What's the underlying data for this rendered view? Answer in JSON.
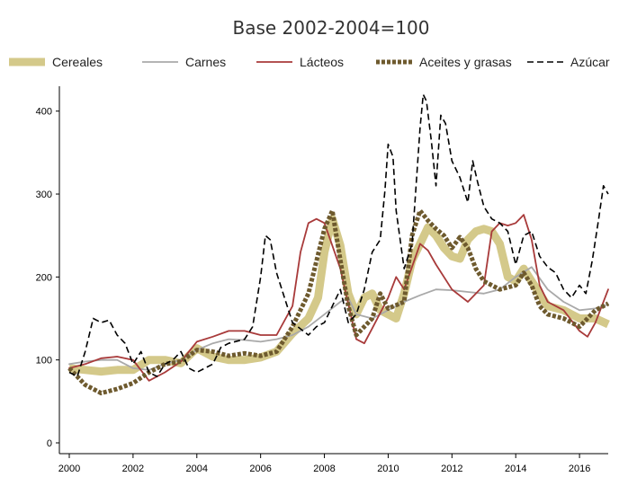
{
  "chart_data": {
    "type": "line",
    "title": "Base 2002-2004=100",
    "xlabel": "",
    "ylabel": "",
    "xlim": [
      2000,
      2016.9
    ],
    "ylim": [
      0,
      430
    ],
    "x_ticks": [
      {
        "value": 2000,
        "label": "2000"
      },
      {
        "value": 2002,
        "label": "2002"
      },
      {
        "value": 2004,
        "label": "2004"
      },
      {
        "value": 2006,
        "label": "2006"
      },
      {
        "value": 2008,
        "label": "2008"
      },
      {
        "value": 2010,
        "label": "2010"
      },
      {
        "value": 2012,
        "label": "2012"
      },
      {
        "value": 2014,
        "label": "2014"
      },
      {
        "value": 2016,
        "label": "2016"
      }
    ],
    "y_ticks": [
      {
        "value": 0,
        "label": "0"
      },
      {
        "value": 100,
        "label": "100"
      },
      {
        "value": 200,
        "label": "200"
      },
      {
        "value": 300,
        "label": "300"
      },
      {
        "value": 400,
        "label": "400"
      }
    ],
    "legend_position": "top",
    "grid": false,
    "series": [
      {
        "name": "Cereales",
        "color": "#d4c98a",
        "style": "thick",
        "points": [
          [
            2000.0,
            90
          ],
          [
            2000.5,
            88
          ],
          [
            2001.0,
            86
          ],
          [
            2001.5,
            88
          ],
          [
            2002.0,
            88
          ],
          [
            2002.5,
            100
          ],
          [
            2003.0,
            100
          ],
          [
            2003.5,
            96
          ],
          [
            2004.0,
            114
          ],
          [
            2004.5,
            104
          ],
          [
            2005.0,
            100
          ],
          [
            2005.5,
            100
          ],
          [
            2006.0,
            103
          ],
          [
            2006.5,
            110
          ],
          [
            2007.0,
            132
          ],
          [
            2007.5,
            150
          ],
          [
            2007.8,
            175
          ],
          [
            2008.0,
            230
          ],
          [
            2008.25,
            270
          ],
          [
            2008.5,
            238
          ],
          [
            2008.75,
            180
          ],
          [
            2009.0,
            155
          ],
          [
            2009.25,
            175
          ],
          [
            2009.5,
            180
          ],
          [
            2009.75,
            160
          ],
          [
            2010.0,
            155
          ],
          [
            2010.25,
            150
          ],
          [
            2010.5,
            180
          ],
          [
            2010.75,
            220
          ],
          [
            2011.0,
            240
          ],
          [
            2011.25,
            260
          ],
          [
            2011.5,
            250
          ],
          [
            2011.75,
            235
          ],
          [
            2012.0,
            225
          ],
          [
            2012.25,
            222
          ],
          [
            2012.5,
            245
          ],
          [
            2012.75,
            255
          ],
          [
            2013.0,
            258
          ],
          [
            2013.25,
            255
          ],
          [
            2013.5,
            240
          ],
          [
            2013.75,
            200
          ],
          [
            2014.0,
            195
          ],
          [
            2014.25,
            210
          ],
          [
            2014.5,
            195
          ],
          [
            2014.75,
            180
          ],
          [
            2015.0,
            165
          ],
          [
            2015.5,
            160
          ],
          [
            2016.0,
            150
          ],
          [
            2016.5,
            150
          ],
          [
            2016.9,
            143
          ]
        ]
      },
      {
        "name": "Carnes",
        "color": "#a9a9a9",
        "style": "solid",
        "points": [
          [
            2000.0,
            95
          ],
          [
            2000.5,
            98
          ],
          [
            2001.0,
            100
          ],
          [
            2001.5,
            100
          ],
          [
            2002.0,
            90
          ],
          [
            2002.5,
            88
          ],
          [
            2003.0,
            95
          ],
          [
            2003.5,
            100
          ],
          [
            2004.0,
            112
          ],
          [
            2004.5,
            120
          ],
          [
            2005.0,
            125
          ],
          [
            2005.5,
            124
          ],
          [
            2006.0,
            122
          ],
          [
            2006.5,
            125
          ],
          [
            2007.0,
            130
          ],
          [
            2007.5,
            140
          ],
          [
            2008.0,
            155
          ],
          [
            2008.5,
            170
          ],
          [
            2008.75,
            175
          ],
          [
            2009.0,
            155
          ],
          [
            2009.5,
            150
          ],
          [
            2010.0,
            160
          ],
          [
            2010.5,
            170
          ],
          [
            2011.0,
            178
          ],
          [
            2011.5,
            185
          ],
          [
            2012.0,
            184
          ],
          [
            2012.5,
            182
          ],
          [
            2013.0,
            180
          ],
          [
            2013.5,
            185
          ],
          [
            2014.0,
            200
          ],
          [
            2014.5,
            212
          ],
          [
            2015.0,
            185
          ],
          [
            2015.5,
            170
          ],
          [
            2016.0,
            160
          ],
          [
            2016.5,
            162
          ],
          [
            2016.9,
            167
          ]
        ]
      },
      {
        "name": "Lácteos",
        "color": "#a83a3a",
        "style": "solid",
        "points": [
          [
            2000.0,
            90
          ],
          [
            2000.5,
            95
          ],
          [
            2001.0,
            102
          ],
          [
            2001.5,
            104
          ],
          [
            2002.0,
            100
          ],
          [
            2002.5,
            75
          ],
          [
            2003.0,
            85
          ],
          [
            2003.5,
            98
          ],
          [
            2004.0,
            122
          ],
          [
            2004.5,
            128
          ],
          [
            2005.0,
            135
          ],
          [
            2005.5,
            135
          ],
          [
            2006.0,
            130
          ],
          [
            2006.5,
            130
          ],
          [
            2007.0,
            165
          ],
          [
            2007.25,
            230
          ],
          [
            2007.5,
            265
          ],
          [
            2007.75,
            270
          ],
          [
            2008.0,
            265
          ],
          [
            2008.5,
            210
          ],
          [
            2009.0,
            125
          ],
          [
            2009.25,
            120
          ],
          [
            2009.5,
            138
          ],
          [
            2010.0,
            175
          ],
          [
            2010.25,
            200
          ],
          [
            2010.5,
            185
          ],
          [
            2011.0,
            240
          ],
          [
            2011.25,
            232
          ],
          [
            2011.5,
            215
          ],
          [
            2012.0,
            185
          ],
          [
            2012.5,
            170
          ],
          [
            2013.0,
            190
          ],
          [
            2013.25,
            255
          ],
          [
            2013.5,
            265
          ],
          [
            2013.75,
            262
          ],
          [
            2014.0,
            265
          ],
          [
            2014.25,
            275
          ],
          [
            2014.5,
            245
          ],
          [
            2014.75,
            190
          ],
          [
            2015.0,
            170
          ],
          [
            2015.5,
            160
          ],
          [
            2016.0,
            135
          ],
          [
            2016.25,
            128
          ],
          [
            2016.5,
            145
          ],
          [
            2016.9,
            185
          ]
        ]
      },
      {
        "name": "Aceites y grasas",
        "color": "#6e5a2e",
        "style": "dotted",
        "points": [
          [
            2000.0,
            90
          ],
          [
            2000.5,
            70
          ],
          [
            2001.0,
            60
          ],
          [
            2001.5,
            65
          ],
          [
            2002.0,
            72
          ],
          [
            2002.5,
            85
          ],
          [
            2003.0,
            95
          ],
          [
            2003.5,
            98
          ],
          [
            2004.0,
            112
          ],
          [
            2004.5,
            110
          ],
          [
            2005.0,
            105
          ],
          [
            2005.5,
            108
          ],
          [
            2006.0,
            105
          ],
          [
            2006.5,
            110
          ],
          [
            2007.0,
            140
          ],
          [
            2007.5,
            180
          ],
          [
            2008.0,
            258
          ],
          [
            2008.25,
            280
          ],
          [
            2008.5,
            220
          ],
          [
            2008.75,
            165
          ],
          [
            2009.0,
            130
          ],
          [
            2009.5,
            150
          ],
          [
            2009.75,
            180
          ],
          [
            2010.0,
            162
          ],
          [
            2010.5,
            170
          ],
          [
            2010.75,
            250
          ],
          [
            2011.0,
            280
          ],
          [
            2011.25,
            268
          ],
          [
            2011.5,
            258
          ],
          [
            2011.75,
            250
          ],
          [
            2012.0,
            235
          ],
          [
            2012.25,
            248
          ],
          [
            2012.5,
            235
          ],
          [
            2012.75,
            210
          ],
          [
            2013.0,
            195
          ],
          [
            2013.5,
            185
          ],
          [
            2014.0,
            190
          ],
          [
            2014.25,
            205
          ],
          [
            2014.5,
            190
          ],
          [
            2014.75,
            165
          ],
          [
            2015.0,
            155
          ],
          [
            2015.5,
            150
          ],
          [
            2016.0,
            140
          ],
          [
            2016.5,
            160
          ],
          [
            2016.9,
            168
          ]
        ]
      },
      {
        "name": "Azúcar",
        "color": "#000000",
        "style": "dashed",
        "points": [
          [
            2000.0,
            85
          ],
          [
            2000.25,
            80
          ],
          [
            2000.5,
            110
          ],
          [
            2000.75,
            150
          ],
          [
            2001.0,
            145
          ],
          [
            2001.25,
            148
          ],
          [
            2001.5,
            130
          ],
          [
            2001.75,
            120
          ],
          [
            2002.0,
            95
          ],
          [
            2002.25,
            110
          ],
          [
            2002.5,
            85
          ],
          [
            2002.75,
            80
          ],
          [
            2003.0,
            95
          ],
          [
            2003.25,
            100
          ],
          [
            2003.5,
            110
          ],
          [
            2003.75,
            90
          ],
          [
            2004.0,
            85
          ],
          [
            2004.5,
            95
          ],
          [
            2004.75,
            115
          ],
          [
            2005.0,
            120
          ],
          [
            2005.5,
            125
          ],
          [
            2005.75,
            140
          ],
          [
            2006.0,
            200
          ],
          [
            2006.15,
            250
          ],
          [
            2006.3,
            245
          ],
          [
            2006.5,
            205
          ],
          [
            2006.75,
            175
          ],
          [
            2007.0,
            145
          ],
          [
            2007.5,
            130
          ],
          [
            2007.75,
            140
          ],
          [
            2008.0,
            145
          ],
          [
            2008.25,
            165
          ],
          [
            2008.5,
            185
          ],
          [
            2008.75,
            145
          ],
          [
            2009.0,
            155
          ],
          [
            2009.25,
            185
          ],
          [
            2009.5,
            230
          ],
          [
            2009.75,
            245
          ],
          [
            2009.9,
            305
          ],
          [
            2010.0,
            360
          ],
          [
            2010.15,
            345
          ],
          [
            2010.25,
            280
          ],
          [
            2010.5,
            210
          ],
          [
            2010.75,
            240
          ],
          [
            2011.0,
            380
          ],
          [
            2011.1,
            420
          ],
          [
            2011.2,
            412
          ],
          [
            2011.35,
            365
          ],
          [
            2011.5,
            310
          ],
          [
            2011.65,
            395
          ],
          [
            2011.8,
            385
          ],
          [
            2012.0,
            340
          ],
          [
            2012.25,
            320
          ],
          [
            2012.5,
            290
          ],
          [
            2012.65,
            340
          ],
          [
            2012.8,
            315
          ],
          [
            2013.0,
            285
          ],
          [
            2013.25,
            270
          ],
          [
            2013.5,
            265
          ],
          [
            2013.75,
            255
          ],
          [
            2014.0,
            215
          ],
          [
            2014.25,
            250
          ],
          [
            2014.5,
            255
          ],
          [
            2014.75,
            225
          ],
          [
            2015.0,
            212
          ],
          [
            2015.25,
            205
          ],
          [
            2015.5,
            185
          ],
          [
            2015.75,
            175
          ],
          [
            2016.0,
            190
          ],
          [
            2016.2,
            180
          ],
          [
            2016.4,
            220
          ],
          [
            2016.6,
            270
          ],
          [
            2016.75,
            310
          ],
          [
            2016.9,
            300
          ]
        ]
      }
    ]
  }
}
